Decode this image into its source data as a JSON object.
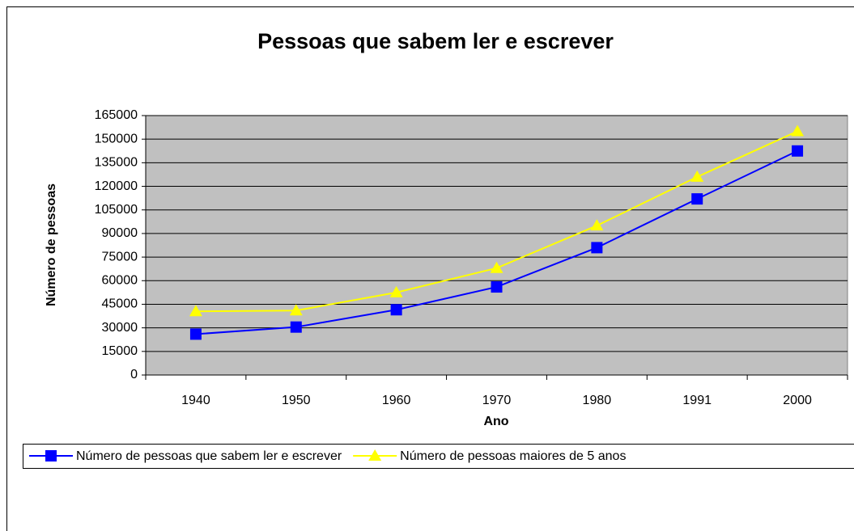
{
  "chart_data": {
    "type": "line",
    "title": "Pessoas que sabem ler e escrever",
    "x_label": "Ano",
    "y_label": "Número de pessoas",
    "categories": [
      "1940",
      "1950",
      "1960",
      "1970",
      "1980",
      "1991",
      "2000"
    ],
    "series": [
      {
        "name": "Número de pessoas que sabem ler e escrever",
        "color": "#0000ff",
        "marker": "square",
        "values": [
          26000,
          30500,
          41500,
          56000,
          81000,
          112000,
          142500
        ]
      },
      {
        "name": "Número de pessoas maiores de 5 anos",
        "color": "#ffff00",
        "marker": "triangle",
        "values": [
          40500,
          41000,
          52500,
          68000,
          95000,
          126000,
          155000
        ]
      }
    ],
    "ylim": [
      0,
      165000
    ],
    "yticks": [
      0,
      15000,
      30000,
      45000,
      60000,
      75000,
      90000,
      105000,
      120000,
      135000,
      150000,
      165000
    ],
    "grid": true,
    "legend": "bottom"
  }
}
